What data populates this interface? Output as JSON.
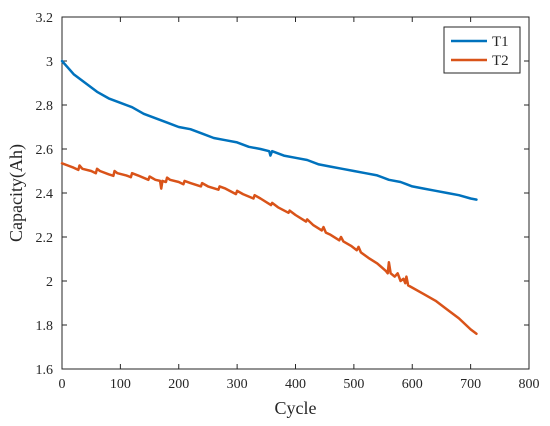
{
  "chart_data": {
    "type": "line",
    "xlabel": "Cycle",
    "ylabel": "Capacity(Ah)",
    "xlim": [
      0,
      800
    ],
    "ylim": [
      1.6,
      3.2
    ],
    "xticks": [
      0,
      100,
      200,
      300,
      400,
      500,
      600,
      700,
      800
    ],
    "yticks": [
      1.6,
      1.8,
      2,
      2.2,
      2.4,
      2.6,
      2.8,
      3,
      3.2
    ],
    "ytick_labels": [
      "1.6",
      "1.8",
      "2",
      "2.2",
      "2.4",
      "2.6",
      "2.8",
      "3",
      "3.2"
    ],
    "grid": false,
    "legend_position": "top-right",
    "series": [
      {
        "name": "T1",
        "color": "#0072BD",
        "points": [
          [
            0,
            3.0
          ],
          [
            10,
            2.97
          ],
          [
            20,
            2.94
          ],
          [
            30,
            2.92
          ],
          [
            40,
            2.9
          ],
          [
            60,
            2.86
          ],
          [
            80,
            2.83
          ],
          [
            100,
            2.81
          ],
          [
            120,
            2.79
          ],
          [
            140,
            2.76
          ],
          [
            160,
            2.74
          ],
          [
            180,
            2.72
          ],
          [
            200,
            2.7
          ],
          [
            220,
            2.69
          ],
          [
            240,
            2.67
          ],
          [
            260,
            2.65
          ],
          [
            280,
            2.64
          ],
          [
            300,
            2.63
          ],
          [
            320,
            2.61
          ],
          [
            340,
            2.6
          ],
          [
            355,
            2.59
          ],
          [
            357,
            2.57
          ],
          [
            360,
            2.59
          ],
          [
            380,
            2.57
          ],
          [
            400,
            2.56
          ],
          [
            420,
            2.55
          ],
          [
            440,
            2.53
          ],
          [
            460,
            2.52
          ],
          [
            480,
            2.51
          ],
          [
            500,
            2.5
          ],
          [
            520,
            2.49
          ],
          [
            540,
            2.48
          ],
          [
            560,
            2.46
          ],
          [
            580,
            2.45
          ],
          [
            590,
            2.44
          ],
          [
            600,
            2.43
          ],
          [
            620,
            2.42
          ],
          [
            640,
            2.41
          ],
          [
            660,
            2.4
          ],
          [
            680,
            2.39
          ],
          [
            700,
            2.375
          ],
          [
            710,
            2.37
          ]
        ]
      },
      {
        "name": "T2",
        "color": "#D95319",
        "points": [
          [
            0,
            2.535
          ],
          [
            10,
            2.525
          ],
          [
            20,
            2.515
          ],
          [
            28,
            2.505
          ],
          [
            30,
            2.525
          ],
          [
            35,
            2.51
          ],
          [
            50,
            2.5
          ],
          [
            58,
            2.49
          ],
          [
            60,
            2.51
          ],
          [
            65,
            2.5
          ],
          [
            80,
            2.485
          ],
          [
            88,
            2.478
          ],
          [
            90,
            2.5
          ],
          [
            95,
            2.49
          ],
          [
            110,
            2.48
          ],
          [
            118,
            2.472
          ],
          [
            120,
            2.49
          ],
          [
            130,
            2.48
          ],
          [
            148,
            2.46
          ],
          [
            150,
            2.475
          ],
          [
            160,
            2.46
          ],
          [
            168,
            2.455
          ],
          [
            170,
            2.42
          ],
          [
            172,
            2.455
          ],
          [
            178,
            2.45
          ],
          [
            180,
            2.47
          ],
          [
            185,
            2.46
          ],
          [
            200,
            2.45
          ],
          [
            208,
            2.44
          ],
          [
            210,
            2.455
          ],
          [
            220,
            2.445
          ],
          [
            238,
            2.43
          ],
          [
            240,
            2.445
          ],
          [
            250,
            2.43
          ],
          [
            268,
            2.415
          ],
          [
            270,
            2.43
          ],
          [
            280,
            2.42
          ],
          [
            298,
            2.395
          ],
          [
            300,
            2.41
          ],
          [
            310,
            2.395
          ],
          [
            328,
            2.375
          ],
          [
            330,
            2.39
          ],
          [
            340,
            2.375
          ],
          [
            358,
            2.345
          ],
          [
            360,
            2.355
          ],
          [
            370,
            2.335
          ],
          [
            388,
            2.31
          ],
          [
            390,
            2.32
          ],
          [
            400,
            2.3
          ],
          [
            418,
            2.27
          ],
          [
            420,
            2.28
          ],
          [
            430,
            2.255
          ],
          [
            445,
            2.23
          ],
          [
            448,
            2.245
          ],
          [
            452,
            2.22
          ],
          [
            460,
            2.21
          ],
          [
            475,
            2.185
          ],
          [
            478,
            2.2
          ],
          [
            482,
            2.18
          ],
          [
            495,
            2.16
          ],
          [
            505,
            2.14
          ],
          [
            508,
            2.155
          ],
          [
            512,
            2.13
          ],
          [
            525,
            2.105
          ],
          [
            540,
            2.08
          ],
          [
            555,
            2.045
          ],
          [
            558,
            2.035
          ],
          [
            560,
            2.085
          ],
          [
            563,
            2.035
          ],
          [
            570,
            2.02
          ],
          [
            575,
            2.035
          ],
          [
            580,
            2.0
          ],
          [
            585,
            2.01
          ],
          [
            588,
            1.99
          ],
          [
            590,
            2.02
          ],
          [
            593,
            1.98
          ],
          [
            600,
            1.97
          ],
          [
            620,
            1.94
          ],
          [
            640,
            1.91
          ],
          [
            660,
            1.87
          ],
          [
            680,
            1.83
          ],
          [
            700,
            1.78
          ],
          [
            710,
            1.76
          ]
        ]
      }
    ]
  }
}
